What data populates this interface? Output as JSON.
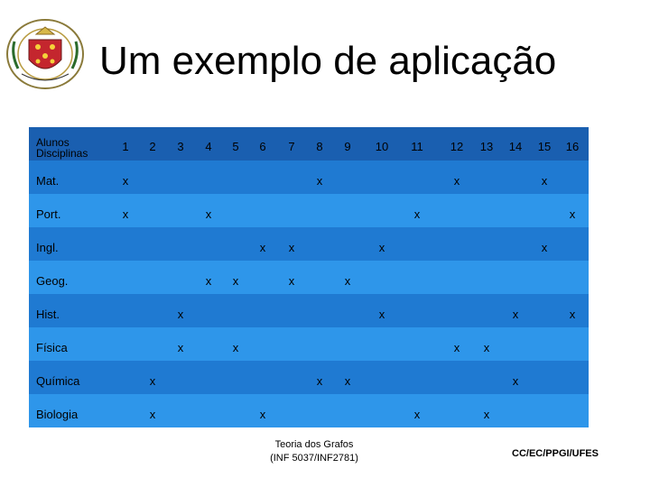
{
  "title": "Um exemplo de aplicação",
  "table": {
    "header_label": [
      "Alunos",
      "Disciplinas"
    ],
    "columns": [
      "1",
      "2",
      "3",
      "4",
      "5",
      "6",
      "7",
      "8",
      "9",
      "10",
      "11",
      "12",
      "13",
      "14",
      "15",
      "16"
    ],
    "rows": [
      {
        "label": "Mat.",
        "marks": [
          1,
          8,
          12,
          15
        ]
      },
      {
        "label": "Port.",
        "marks": [
          1,
          4,
          11,
          16
        ]
      },
      {
        "label": "Ingl.",
        "marks": [
          6,
          7,
          10,
          15
        ]
      },
      {
        "label": "Geog.",
        "marks": [
          4,
          5,
          7,
          9
        ]
      },
      {
        "label": "Hist.",
        "marks": [
          3,
          10,
          14,
          16
        ]
      },
      {
        "label": "Física",
        "marks": [
          3,
          5,
          12,
          13
        ]
      },
      {
        "label": "Química",
        "marks": [
          2,
          8,
          9,
          14
        ]
      },
      {
        "label": "Biologia",
        "marks": [
          2,
          6,
          11,
          13
        ]
      }
    ],
    "mark_symbol": "x"
  },
  "footer": {
    "course_line1": "Teoria dos Grafos",
    "course_line2": "(INF 5037/INF2781)",
    "institution": "CC/EC/PPGI/UFES"
  },
  "colors": {
    "header_band": "#1a5fb0",
    "row_dark": "#1f7ad2",
    "row_light": "#2e96ea"
  },
  "logo_icon": "university-crest-icon"
}
